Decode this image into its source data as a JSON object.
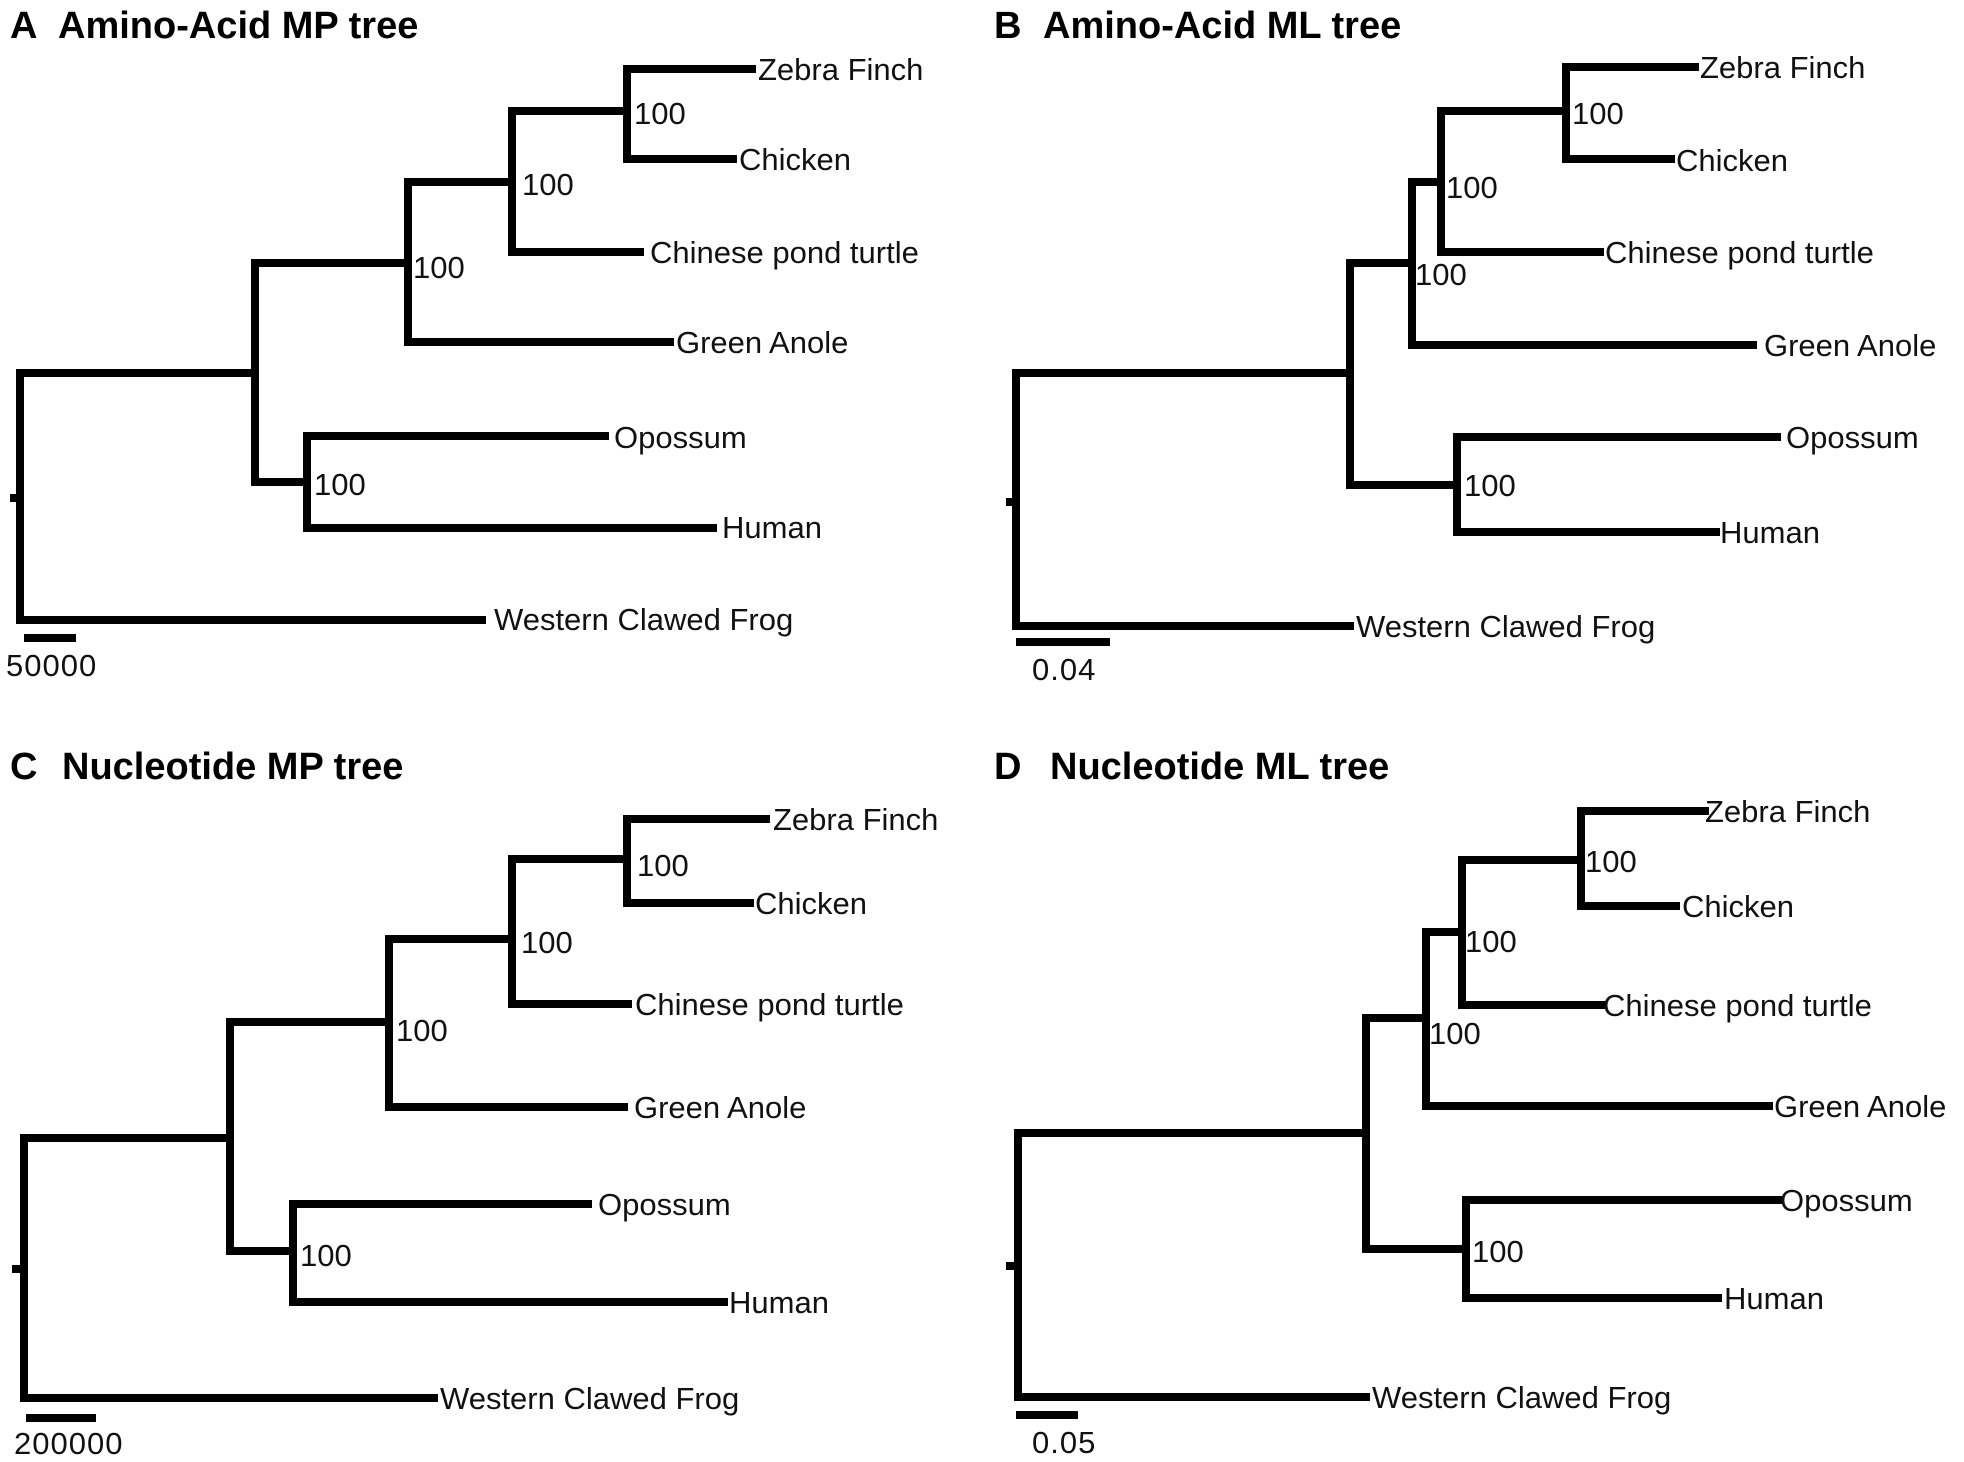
{
  "panels": [
    {
      "letter": "A",
      "title": "Amino-Acid MP tree",
      "scale_label": "50000",
      "taxa": [
        "Zebra Finch",
        "Chicken",
        "Chinese pond turtle",
        "Green Anole",
        "Opossum",
        "Human",
        "Western Clawed Frog"
      ],
      "supports": [
        "100",
        "100",
        "100",
        "100"
      ]
    },
    {
      "letter": "B",
      "title": "Amino-Acid ML tree",
      "scale_label": "0.04",
      "taxa": [
        "Zebra Finch",
        "Chicken",
        "Chinese pond turtle",
        "Green Anole",
        "Opossum",
        "Human",
        "Western Clawed Frog"
      ],
      "supports": [
        "100",
        "100",
        "100",
        "100"
      ]
    },
    {
      "letter": "C",
      "title": "Nucleotide MP tree",
      "scale_label": "200000",
      "taxa": [
        "Zebra Finch",
        "Chicken",
        "Chinese pond turtle",
        "Green Anole",
        "Opossum",
        "Human",
        "Western Clawed Frog"
      ],
      "supports": [
        "100",
        "100",
        "100",
        "100"
      ]
    },
    {
      "letter": "D",
      "title": "Nucleotide ML tree",
      "scale_label": "0.05",
      "taxa": [
        "Zebra Finch",
        "Chicken",
        "Chinese pond turtle",
        "Green Anole",
        "Opossum",
        "Human",
        "Western Clawed Frog"
      ],
      "supports": [
        "100",
        "100",
        "100",
        "100"
      ]
    }
  ]
}
